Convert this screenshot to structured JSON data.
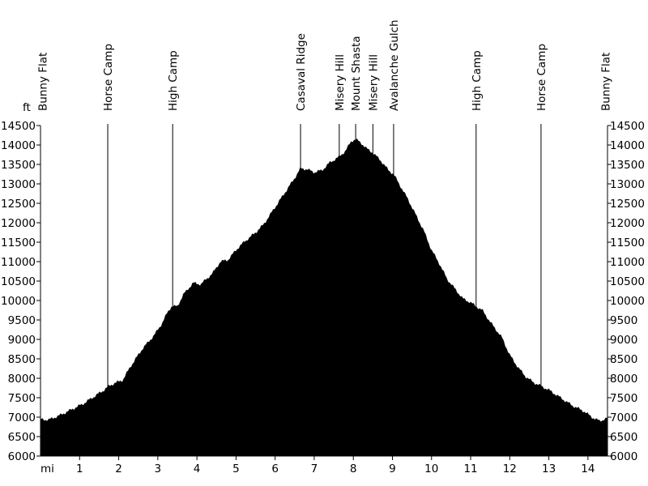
{
  "chart_data": {
    "type": "area",
    "y_unit_label": "ft",
    "x_unit_label": "mi",
    "ylim": [
      6000,
      14500
    ],
    "xlim": [
      0,
      14.5
    ],
    "y_ticks": [
      6000,
      6500,
      7000,
      7500,
      8000,
      8500,
      9000,
      9500,
      10000,
      10500,
      11000,
      11500,
      12000,
      12500,
      13000,
      13500,
      14000,
      14500
    ],
    "x_ticks": [
      1,
      2,
      3,
      4,
      5,
      6,
      7,
      8,
      9,
      10,
      11,
      12,
      13,
      14
    ],
    "color": "#000000",
    "grid": false,
    "waypoints": [
      {
        "label": "Bunny Flat",
        "x": 0.05
      },
      {
        "label": "Horse Camp",
        "x": 1.72
      },
      {
        "label": "High Camp",
        "x": 3.38
      },
      {
        "label": "Casaval Ridge",
        "x": 6.65
      },
      {
        "label": "Misery Hill",
        "x": 7.64
      },
      {
        "label": "Mount Shasta",
        "x": 8.06
      },
      {
        "label": "Misery Hill",
        "x": 8.5
      },
      {
        "label": "Avalanche Gulch",
        "x": 9.03
      },
      {
        "label": "High Camp",
        "x": 11.14
      },
      {
        "label": "Horse Camp",
        "x": 12.8
      },
      {
        "label": "Bunny Flat",
        "x": 14.45
      }
    ],
    "profile": [
      [
        0,
        6950
      ],
      [
        0.2,
        6930
      ],
      [
        0.5,
        7050
      ],
      [
        0.8,
        7200
      ],
      [
        1.1,
        7350
      ],
      [
        1.4,
        7550
      ],
      [
        1.6,
        7680
      ],
      [
        1.72,
        7780
      ],
      [
        1.9,
        7880
      ],
      [
        2.1,
        7950
      ],
      [
        2.3,
        8300
      ],
      [
        2.6,
        8750
      ],
      [
        2.9,
        9100
      ],
      [
        3.1,
        9400
      ],
      [
        3.25,
        9700
      ],
      [
        3.35,
        9850
      ],
      [
        3.5,
        9850
      ],
      [
        3.65,
        10150
      ],
      [
        3.9,
        10450
      ],
      [
        4.1,
        10420
      ],
      [
        4.4,
        10700
      ],
      [
        4.6,
        11000
      ],
      [
        4.8,
        11050
      ],
      [
        5.0,
        11300
      ],
      [
        5.2,
        11500
      ],
      [
        5.5,
        11750
      ],
      [
        5.7,
        11950
      ],
      [
        5.9,
        12250
      ],
      [
        6.1,
        12550
      ],
      [
        6.3,
        12850
      ],
      [
        6.5,
        13150
      ],
      [
        6.65,
        13400
      ],
      [
        6.8,
        13380
      ],
      [
        7.0,
        13300
      ],
      [
        7.2,
        13350
      ],
      [
        7.4,
        13550
      ],
      [
        7.64,
        13700
      ],
      [
        7.8,
        13850
      ],
      [
        7.95,
        14100
      ],
      [
        8.06,
        14150
      ],
      [
        8.2,
        14050
      ],
      [
        8.35,
        13900
      ],
      [
        8.5,
        13800
      ],
      [
        8.7,
        13600
      ],
      [
        8.9,
        13350
      ],
      [
        9.03,
        13250
      ],
      [
        9.2,
        12950
      ],
      [
        9.4,
        12600
      ],
      [
        9.6,
        12200
      ],
      [
        9.8,
        11800
      ],
      [
        10.0,
        11300
      ],
      [
        10.2,
        10950
      ],
      [
        10.4,
        10550
      ],
      [
        10.6,
        10300
      ],
      [
        10.8,
        10050
      ],
      [
        11.0,
        9950
      ],
      [
        11.14,
        9850
      ],
      [
        11.3,
        9750
      ],
      [
        11.5,
        9450
      ],
      [
        11.8,
        9050
      ],
      [
        12.0,
        8600
      ],
      [
        12.2,
        8300
      ],
      [
        12.4,
        8050
      ],
      [
        12.6,
        7900
      ],
      [
        12.8,
        7800
      ],
      [
        13.0,
        7700
      ],
      [
        13.3,
        7500
      ],
      [
        13.6,
        7300
      ],
      [
        13.9,
        7150
      ],
      [
        14.1,
        7000
      ],
      [
        14.3,
        6900
      ],
      [
        14.5,
        6980
      ]
    ]
  }
}
